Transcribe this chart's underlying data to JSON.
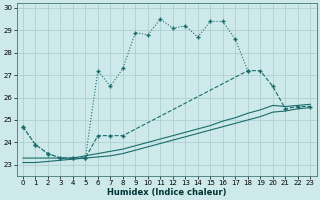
{
  "xlabel": "Humidex (Indice chaleur)",
  "bg_color": "#cde9e9",
  "grid_color": "#a8cccc",
  "line_color": "#1a6b6b",
  "xlim": [
    -0.5,
    23.5
  ],
  "ylim": [
    22.5,
    30.2
  ],
  "xticks": [
    0,
    1,
    2,
    3,
    4,
    5,
    6,
    7,
    8,
    9,
    10,
    11,
    12,
    13,
    14,
    15,
    16,
    17,
    18,
    19,
    20,
    21,
    22,
    23
  ],
  "yticks": [
    23,
    24,
    25,
    26,
    27,
    28,
    29,
    30
  ],
  "line1_x": [
    0,
    1,
    2,
    3,
    4,
    5,
    6,
    7,
    8,
    9,
    10,
    11,
    12,
    13,
    14,
    15,
    16,
    17,
    18
  ],
  "line1_y": [
    24.7,
    23.9,
    23.5,
    23.3,
    23.3,
    23.3,
    27.2,
    26.5,
    27.3,
    28.9,
    28.8,
    29.5,
    29.1,
    29.2,
    28.7,
    29.4,
    29.4,
    28.6,
    27.2
  ],
  "line1_style": "dotted",
  "line2_x": [
    0,
    1,
    2,
    3,
    4,
    5,
    6,
    7,
    8,
    18,
    19,
    20,
    21,
    22,
    23
  ],
  "line2_y": [
    24.7,
    23.9,
    23.5,
    23.3,
    23.3,
    23.3,
    24.3,
    24.3,
    24.3,
    27.2,
    27.2,
    26.5,
    25.5,
    25.6,
    25.6
  ],
  "line2_style": "dashed",
  "line3_x": [
    0,
    1,
    2,
    3,
    4,
    5,
    6,
    7,
    8,
    9,
    10,
    11,
    12,
    13,
    14,
    15,
    16,
    17,
    18,
    19,
    20,
    21,
    22,
    23
  ],
  "line3_y": [
    23.3,
    23.3,
    23.3,
    23.3,
    23.3,
    23.4,
    23.5,
    23.6,
    23.7,
    23.85,
    24.0,
    24.15,
    24.3,
    24.45,
    24.6,
    24.75,
    24.95,
    25.1,
    25.3,
    25.45,
    25.65,
    25.6,
    25.65,
    25.7
  ],
  "line3_style": "solid",
  "line4_x": [
    0,
    1,
    2,
    3,
    4,
    5,
    6,
    7,
    8,
    9,
    10,
    11,
    12,
    13,
    14,
    15,
    16,
    17,
    18,
    19,
    20,
    21,
    22,
    23
  ],
  "line4_y": [
    23.1,
    23.1,
    23.15,
    23.2,
    23.25,
    23.3,
    23.35,
    23.4,
    23.5,
    23.65,
    23.8,
    23.95,
    24.1,
    24.25,
    24.4,
    24.55,
    24.7,
    24.85,
    25.0,
    25.15,
    25.35,
    25.4,
    25.5,
    25.55
  ],
  "line4_style": "solid"
}
